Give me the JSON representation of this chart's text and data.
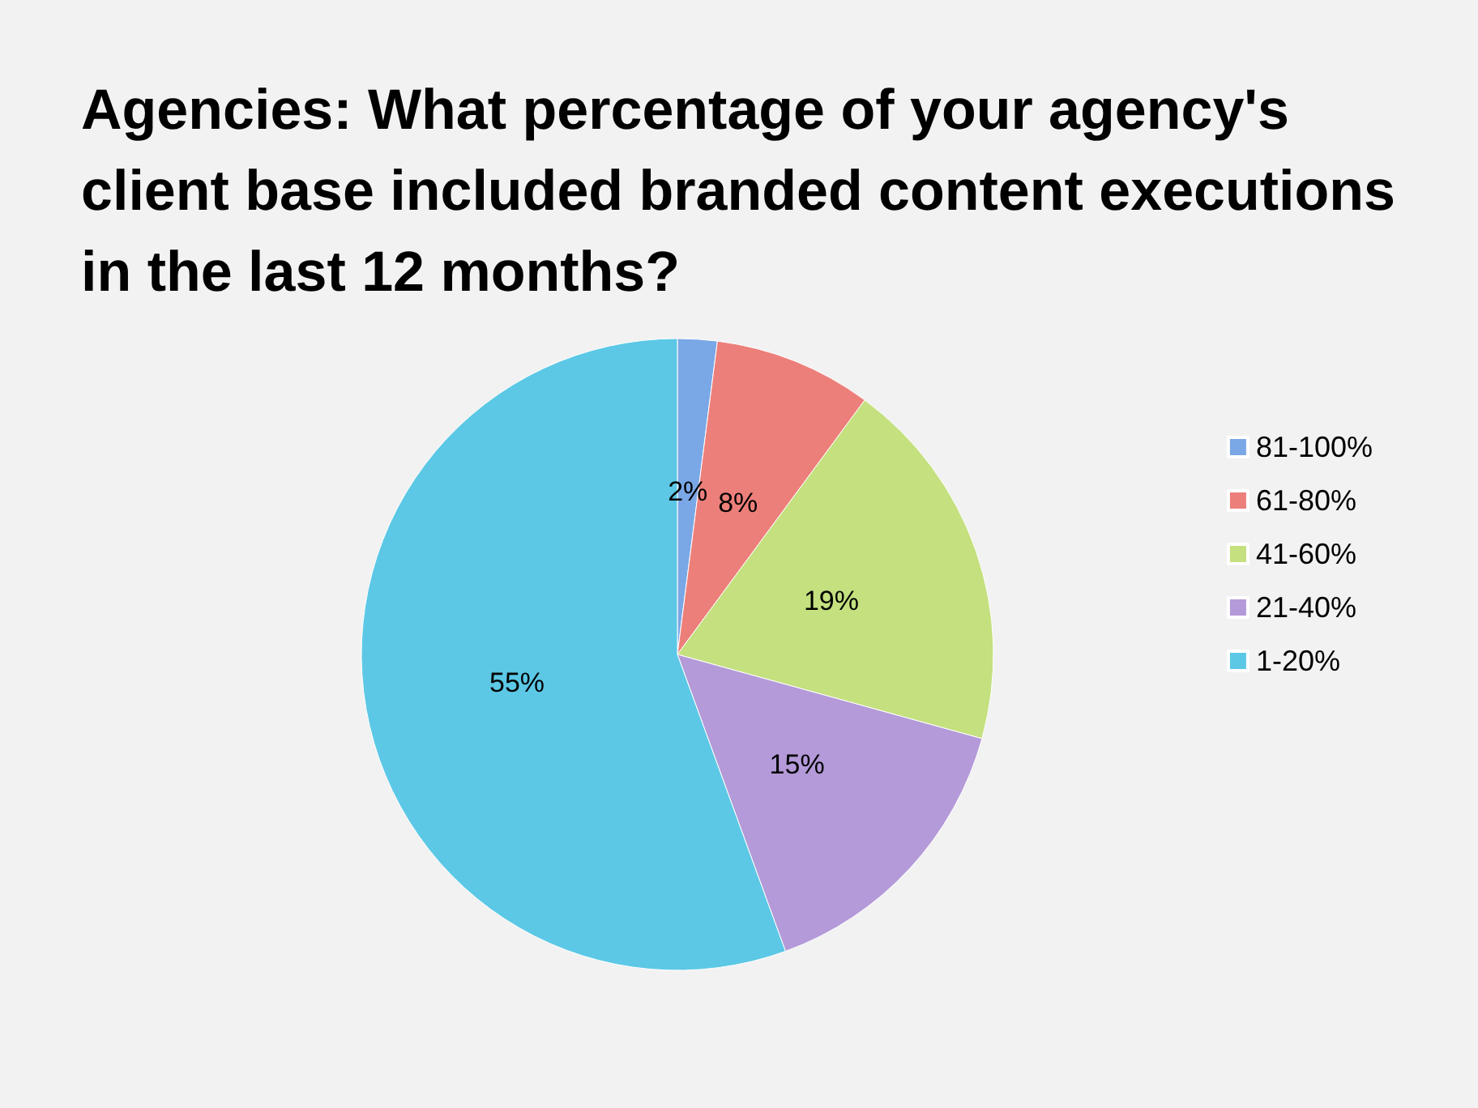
{
  "chart_data": {
    "type": "pie",
    "title": "Agencies: What percentage of your agency's client base included branded content executions in the last 12 months?",
    "categories": [
      "81-100%",
      "61-80%",
      "41-60%",
      "21-40%",
      "1-20%"
    ],
    "values": [
      2,
      8,
      19,
      15,
      55
    ],
    "colors": [
      "#7aa7e6",
      "#ec7f7a",
      "#c4e07f",
      "#b49ad8",
      "#5cc8e6"
    ],
    "value_labels": [
      "2%",
      "8%",
      "19%",
      "15%",
      "55%"
    ],
    "legend": "right"
  }
}
